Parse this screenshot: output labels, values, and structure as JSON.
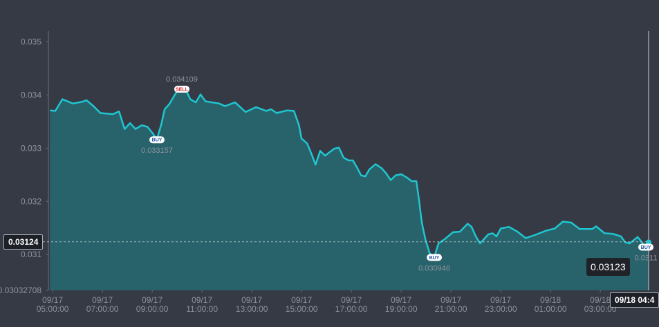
{
  "chart_data": {
    "type": "area",
    "color": "#1fc6d1",
    "fill": "#28636b",
    "x": [
      4.89,
      5.11,
      5.39,
      5.81,
      6.17,
      6.36,
      6.64,
      6.92,
      7.42,
      7.67,
      7.89,
      8.11,
      8.33,
      8.58,
      8.81,
      9.0,
      9.19,
      9.36,
      9.5,
      9.69,
      9.89,
      10.06,
      10.19,
      10.33,
      10.53,
      10.75,
      10.94,
      11.14,
      11.69,
      11.92,
      12.33,
      12.75,
      13.17,
      13.58,
      13.78,
      14.0,
      14.42,
      14.69,
      14.89,
      15.0,
      15.22,
      15.39,
      15.56,
      15.75,
      15.94,
      16.31,
      16.5,
      16.69,
      16.89,
      17.06,
      17.22,
      17.39,
      17.56,
      17.72,
      17.97,
      18.22,
      18.39,
      18.58,
      18.78,
      19.0,
      19.22,
      19.42,
      19.61,
      19.72,
      19.83,
      19.97,
      20.14,
      20.33,
      20.5,
      20.78,
      21.08,
      21.36,
      21.67,
      21.83,
      22.0,
      22.17,
      22.5,
      22.67,
      22.83,
      23.0,
      23.33,
      23.67,
      24.0,
      24.33,
      24.83,
      25.17,
      25.5,
      25.83,
      26.17,
      26.67,
      26.83,
      27.17,
      27.5,
      27.83,
      28.0,
      28.17,
      28.5,
      28.67,
      28.83,
      28.94
    ],
    "values": [
      0.03371,
      0.0337,
      0.03392,
      0.03384,
      0.03387,
      0.0339,
      0.03379,
      0.03366,
      0.03364,
      0.03369,
      0.03336,
      0.03347,
      0.03336,
      0.03343,
      0.0334,
      0.03329,
      0.03317,
      0.03344,
      0.03373,
      0.03383,
      0.03399,
      0.03412,
      0.03413,
      0.03412,
      0.03392,
      0.03386,
      0.03401,
      0.03388,
      0.03384,
      0.03379,
      0.03386,
      0.03368,
      0.03377,
      0.0337,
      0.03373,
      0.03366,
      0.03371,
      0.0337,
      0.03344,
      0.03318,
      0.03309,
      0.0329,
      0.03269,
      0.03295,
      0.03286,
      0.03299,
      0.03301,
      0.03282,
      0.03277,
      0.03277,
      0.03264,
      0.03249,
      0.03247,
      0.0326,
      0.0327,
      0.03262,
      0.03253,
      0.0324,
      0.03249,
      0.03251,
      0.03245,
      0.03238,
      0.03238,
      0.03201,
      0.0316,
      0.03129,
      0.03103,
      0.03095,
      0.03121,
      0.0313,
      0.03142,
      0.03143,
      0.03158,
      0.03152,
      0.03134,
      0.03121,
      0.03138,
      0.0314,
      0.03134,
      0.03149,
      0.03152,
      0.03143,
      0.03131,
      0.03136,
      0.03145,
      0.03149,
      0.03162,
      0.0316,
      0.03148,
      0.03148,
      0.03153,
      0.0314,
      0.03139,
      0.03134,
      0.03123,
      0.03121,
      0.03133,
      0.03123,
      0.03114,
      0.03123
    ],
    "xlim": [
      4.83,
      28.94
    ],
    "xticks": [
      {
        "value": 5,
        "label": "09/17 05:00:00"
      },
      {
        "value": 7,
        "label": "09/17 07:00:00"
      },
      {
        "value": 9,
        "label": "09/17 09:00:00"
      },
      {
        "value": 11,
        "label": "09/17 11:00:00"
      },
      {
        "value": 13,
        "label": "09/17 13:00:00"
      },
      {
        "value": 15,
        "label": "09/17 15:00:00"
      },
      {
        "value": 17,
        "label": "09/17 17:00:00"
      },
      {
        "value": 19,
        "label": "09/17 19:00:00"
      },
      {
        "value": 21,
        "label": "09/17 21:00:00"
      },
      {
        "value": 23,
        "label": "09/17 23:00:00"
      },
      {
        "value": 25,
        "label": "09/18 01:00:00"
      },
      {
        "value": 27,
        "label": "09/18 03:00:00"
      }
    ],
    "ylim": [
      0.03032708,
      0.0352
    ],
    "yticks": [
      0.03032708,
      0.031,
      0.032,
      0.033,
      0.034,
      0.035
    ],
    "trades": [
      {
        "x": 9.19,
        "price": 0.033157,
        "side": "BUY"
      },
      {
        "x": 10.19,
        "price": 0.034109,
        "side": "SELL"
      },
      {
        "x": 20.33,
        "price": 0.030946,
        "side": "BUY"
      },
      {
        "x": 28.83,
        "price": 0.03114,
        "price_label": "0.0311",
        "side": "BUY"
      }
    ],
    "crosshair": {
      "price": 0.03124,
      "x": 28.94,
      "time_label": "09/18 04:4"
    },
    "last_price": 0.03123
  }
}
